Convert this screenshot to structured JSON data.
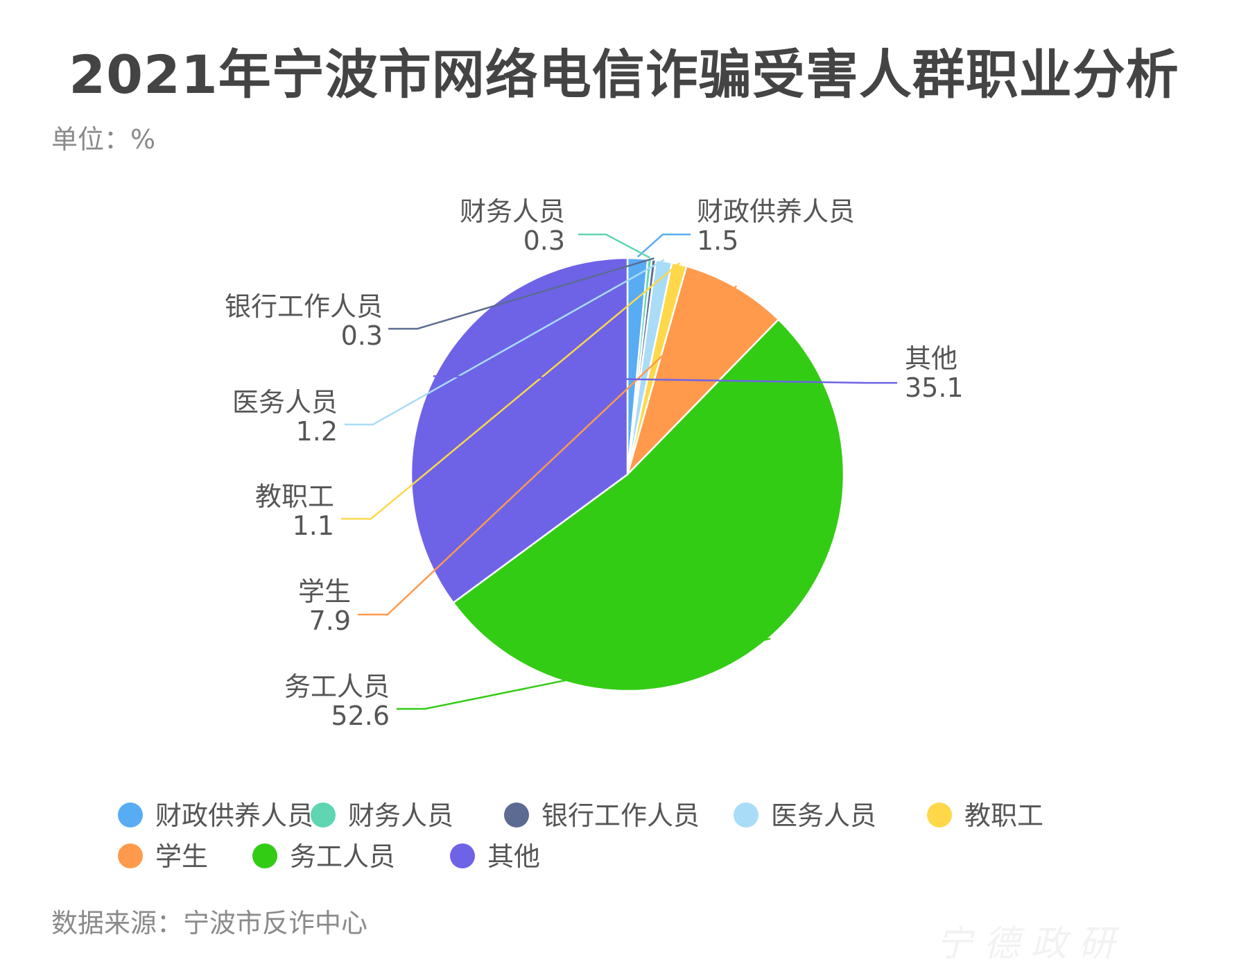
{
  "title": "2021年宁波市网络电信诈骗受害人群职业分析",
  "unit": "单位：%",
  "source": "数据来源：宁波市反诈中心",
  "watermark": "宁 德 政 研",
  "chart_data": {
    "type": "pie",
    "title": "2021年宁波市网络电信诈骗受害人群职业分析",
    "unit": "%",
    "start_angle_deg": 0,
    "direction": "clockwise",
    "legend_position": "bottom",
    "slices": [
      {
        "label": "财政供养人员",
        "value": 1.5,
        "display": "1.5",
        "color": "#58ACF4"
      },
      {
        "label": "财务人员",
        "value": 0.3,
        "display": "0.3",
        "color": "#5FD5B2"
      },
      {
        "label": "银行工作人员",
        "value": 0.3,
        "display": "0.3",
        "color": "#5B6B91"
      },
      {
        "label": "医务人员",
        "value": 1.2,
        "display": "1.2",
        "color": "#A9DCF7"
      },
      {
        "label": "教职工",
        "value": 1.1,
        "display": "1.1",
        "color": "#FFD84A"
      },
      {
        "label": "学生",
        "value": 7.9,
        "display": "7.9",
        "color": "#FF9A4D"
      },
      {
        "label": "务工人员",
        "value": 52.6,
        "display": "52.6",
        "color": "#33CC14"
      },
      {
        "label": "其他",
        "value": 35.1,
        "display": "35.1",
        "color": "#6E63E6"
      }
    ]
  }
}
